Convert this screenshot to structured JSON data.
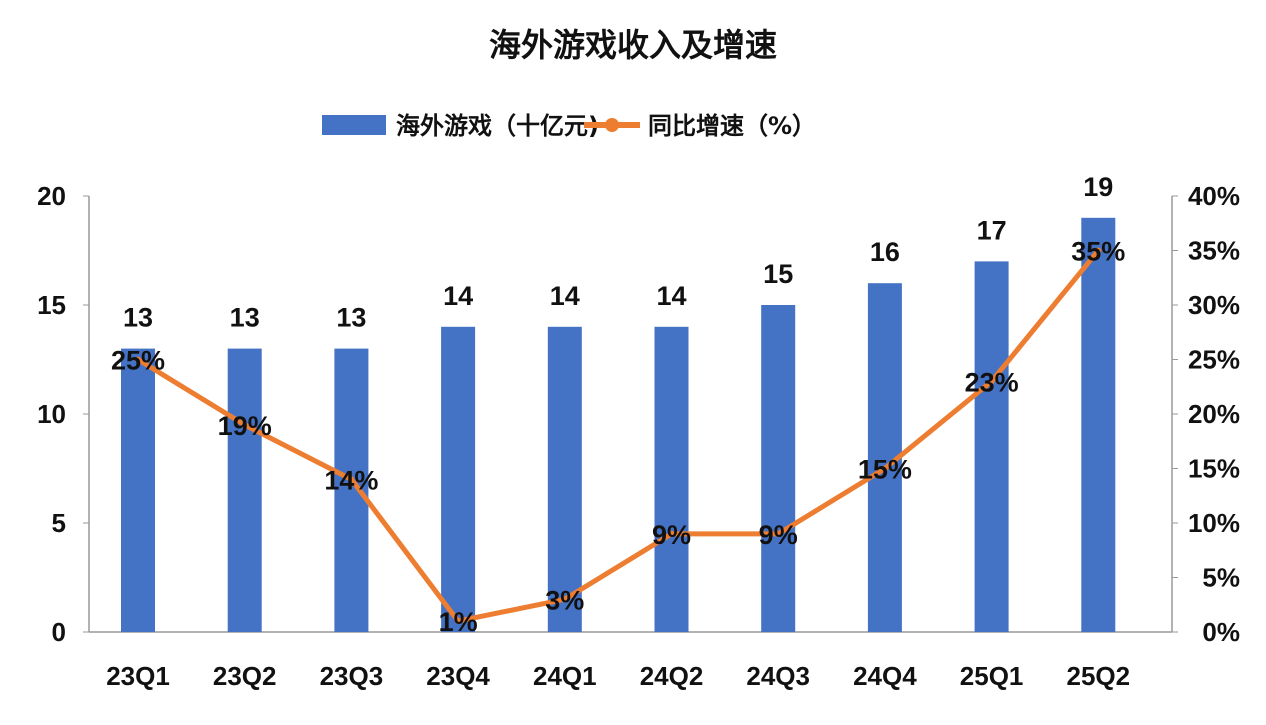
{
  "chart_data": {
    "type": "bar+line",
    "title": "海外游戏收入及增速",
    "categories": [
      "23Q1",
      "23Q2",
      "23Q3",
      "23Q4",
      "24Q1",
      "24Q2",
      "24Q3",
      "24Q4",
      "25Q1",
      "25Q2"
    ],
    "series": [
      {
        "name": "海外游戏（十亿元)",
        "type": "bar",
        "axis": "left",
        "color": "#4472C4",
        "values": [
          13,
          13,
          13,
          14,
          14,
          14,
          15,
          16,
          17,
          19
        ],
        "labels": [
          "13",
          "13",
          "13",
          "14",
          "14",
          "14",
          "15",
          "16",
          "17",
          "19"
        ]
      },
      {
        "name": "同比增速（%）",
        "type": "line",
        "axis": "right",
        "color": "#ED7D31",
        "values": [
          25,
          19,
          14,
          1,
          3,
          9,
          9,
          15,
          23,
          35
        ],
        "labels": [
          "25%",
          "19%",
          "14%",
          "1%",
          "3%",
          "9%",
          "9%",
          "15%",
          "23%",
          "35%"
        ]
      }
    ],
    "y_left": {
      "range": [
        0,
        20
      ],
      "ticks": [
        "0",
        "5",
        "10",
        "15",
        "20"
      ]
    },
    "y_right": {
      "range": [
        0,
        40
      ],
      "ticks": [
        "0%",
        "5%",
        "10%",
        "15%",
        "20%",
        "25%",
        "30%",
        "35%",
        "40%"
      ]
    },
    "grid": false,
    "legend_position": "top-center"
  }
}
